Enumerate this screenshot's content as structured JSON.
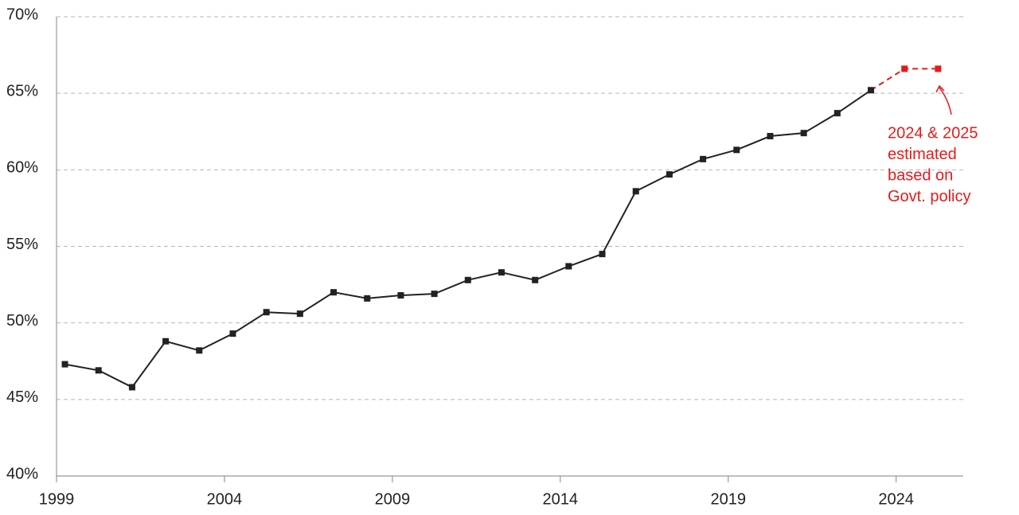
{
  "chart_data": {
    "type": "line",
    "x": [
      1999.25,
      2000.25,
      2001.25,
      2002.25,
      2003.25,
      2004.25,
      2005.25,
      2006.25,
      2007.25,
      2008.25,
      2009.25,
      2010.25,
      2011.25,
      2012.25,
      2013.25,
      2014.25,
      2015.25,
      2016.25,
      2017.25,
      2018.25,
      2019.25,
      2020.25,
      2021.25,
      2022.25,
      2023.25,
      2024.25,
      2025.25
    ],
    "series": [
      {
        "color": "#222222",
        "dashed": false,
        "values": [
          47.3,
          46.9,
          45.8,
          48.8,
          48.2,
          49.3,
          50.7,
          50.6,
          52.0,
          51.6,
          51.8,
          51.9,
          52.8,
          53.3,
          52.8,
          53.7,
          54.5,
          58.6,
          59.7,
          60.7,
          61.3,
          62.2,
          62.4,
          63.7,
          65.2,
          null,
          null
        ]
      },
      {
        "color": "#e8191a",
        "dashed": true,
        "values": [
          null,
          null,
          null,
          null,
          null,
          null,
          null,
          null,
          null,
          null,
          null,
          null,
          null,
          null,
          null,
          null,
          null,
          null,
          null,
          null,
          null,
          null,
          null,
          null,
          65.2,
          66.6,
          66.6
        ]
      }
    ],
    "xlim": [
      1999,
      2026
    ],
    "xticks": [
      1999,
      2004,
      2009,
      2014,
      2019,
      2024
    ],
    "ylim": [
      40,
      70
    ],
    "yticks": [
      {
        "value": 40,
        "label": "40%"
      },
      {
        "value": 45,
        "label": "45%"
      },
      {
        "value": 50,
        "label": "50%"
      },
      {
        "value": 55,
        "label": "55%"
      },
      {
        "value": 60,
        "label": "60%"
      },
      {
        "value": 65,
        "label": "65%"
      },
      {
        "value": 70,
        "label": "70%"
      }
    ],
    "grid": true,
    "annotation": [
      "2024 & 2025",
      "estimated",
      "based on",
      "Govt. policy"
    ]
  }
}
